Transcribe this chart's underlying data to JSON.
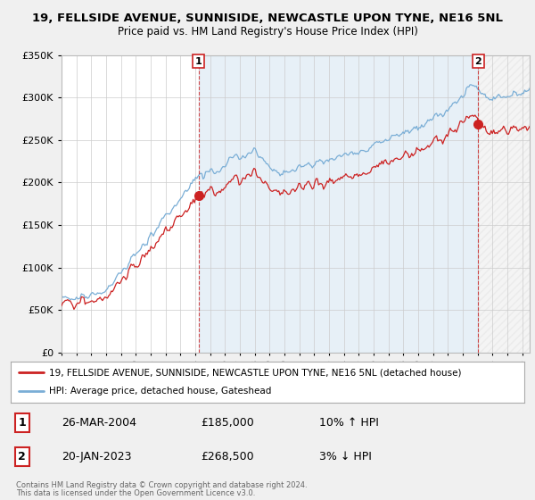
{
  "title": "19, FELLSIDE AVENUE, SUNNISIDE, NEWCASTLE UPON TYNE, NE16 5NL",
  "subtitle": "Price paid vs. HM Land Registry's House Price Index (HPI)",
  "ylim": [
    0,
    350000
  ],
  "xlim_start": 1995.0,
  "xlim_end": 2026.5,
  "sale1_date": "26-MAR-2004",
  "sale1_price": 185000,
  "sale1_hpi": "10% ↑ HPI",
  "sale2_date": "20-JAN-2023",
  "sale2_price": 268500,
  "sale2_hpi": "3% ↓ HPI",
  "sale1_x": 2004.23,
  "sale2_x": 2023.05,
  "legend_line1": "19, FELLSIDE AVENUE, SUNNISIDE, NEWCASTLE UPON TYNE, NE16 5NL (detached house)",
  "legend_line2": "HPI: Average price, detached house, Gateshead",
  "footnote1": "Contains HM Land Registry data © Crown copyright and database right 2024.",
  "footnote2": "This data is licensed under the Open Government Licence v3.0.",
  "hpi_color": "#7aaed6",
  "price_color": "#cc2222",
  "bg_color": "#f0f0f0",
  "plot_bg": "#ffffff",
  "grid_color": "#cccccc",
  "shade_color": "#ddeeff",
  "hatch_color": "#dddddd"
}
